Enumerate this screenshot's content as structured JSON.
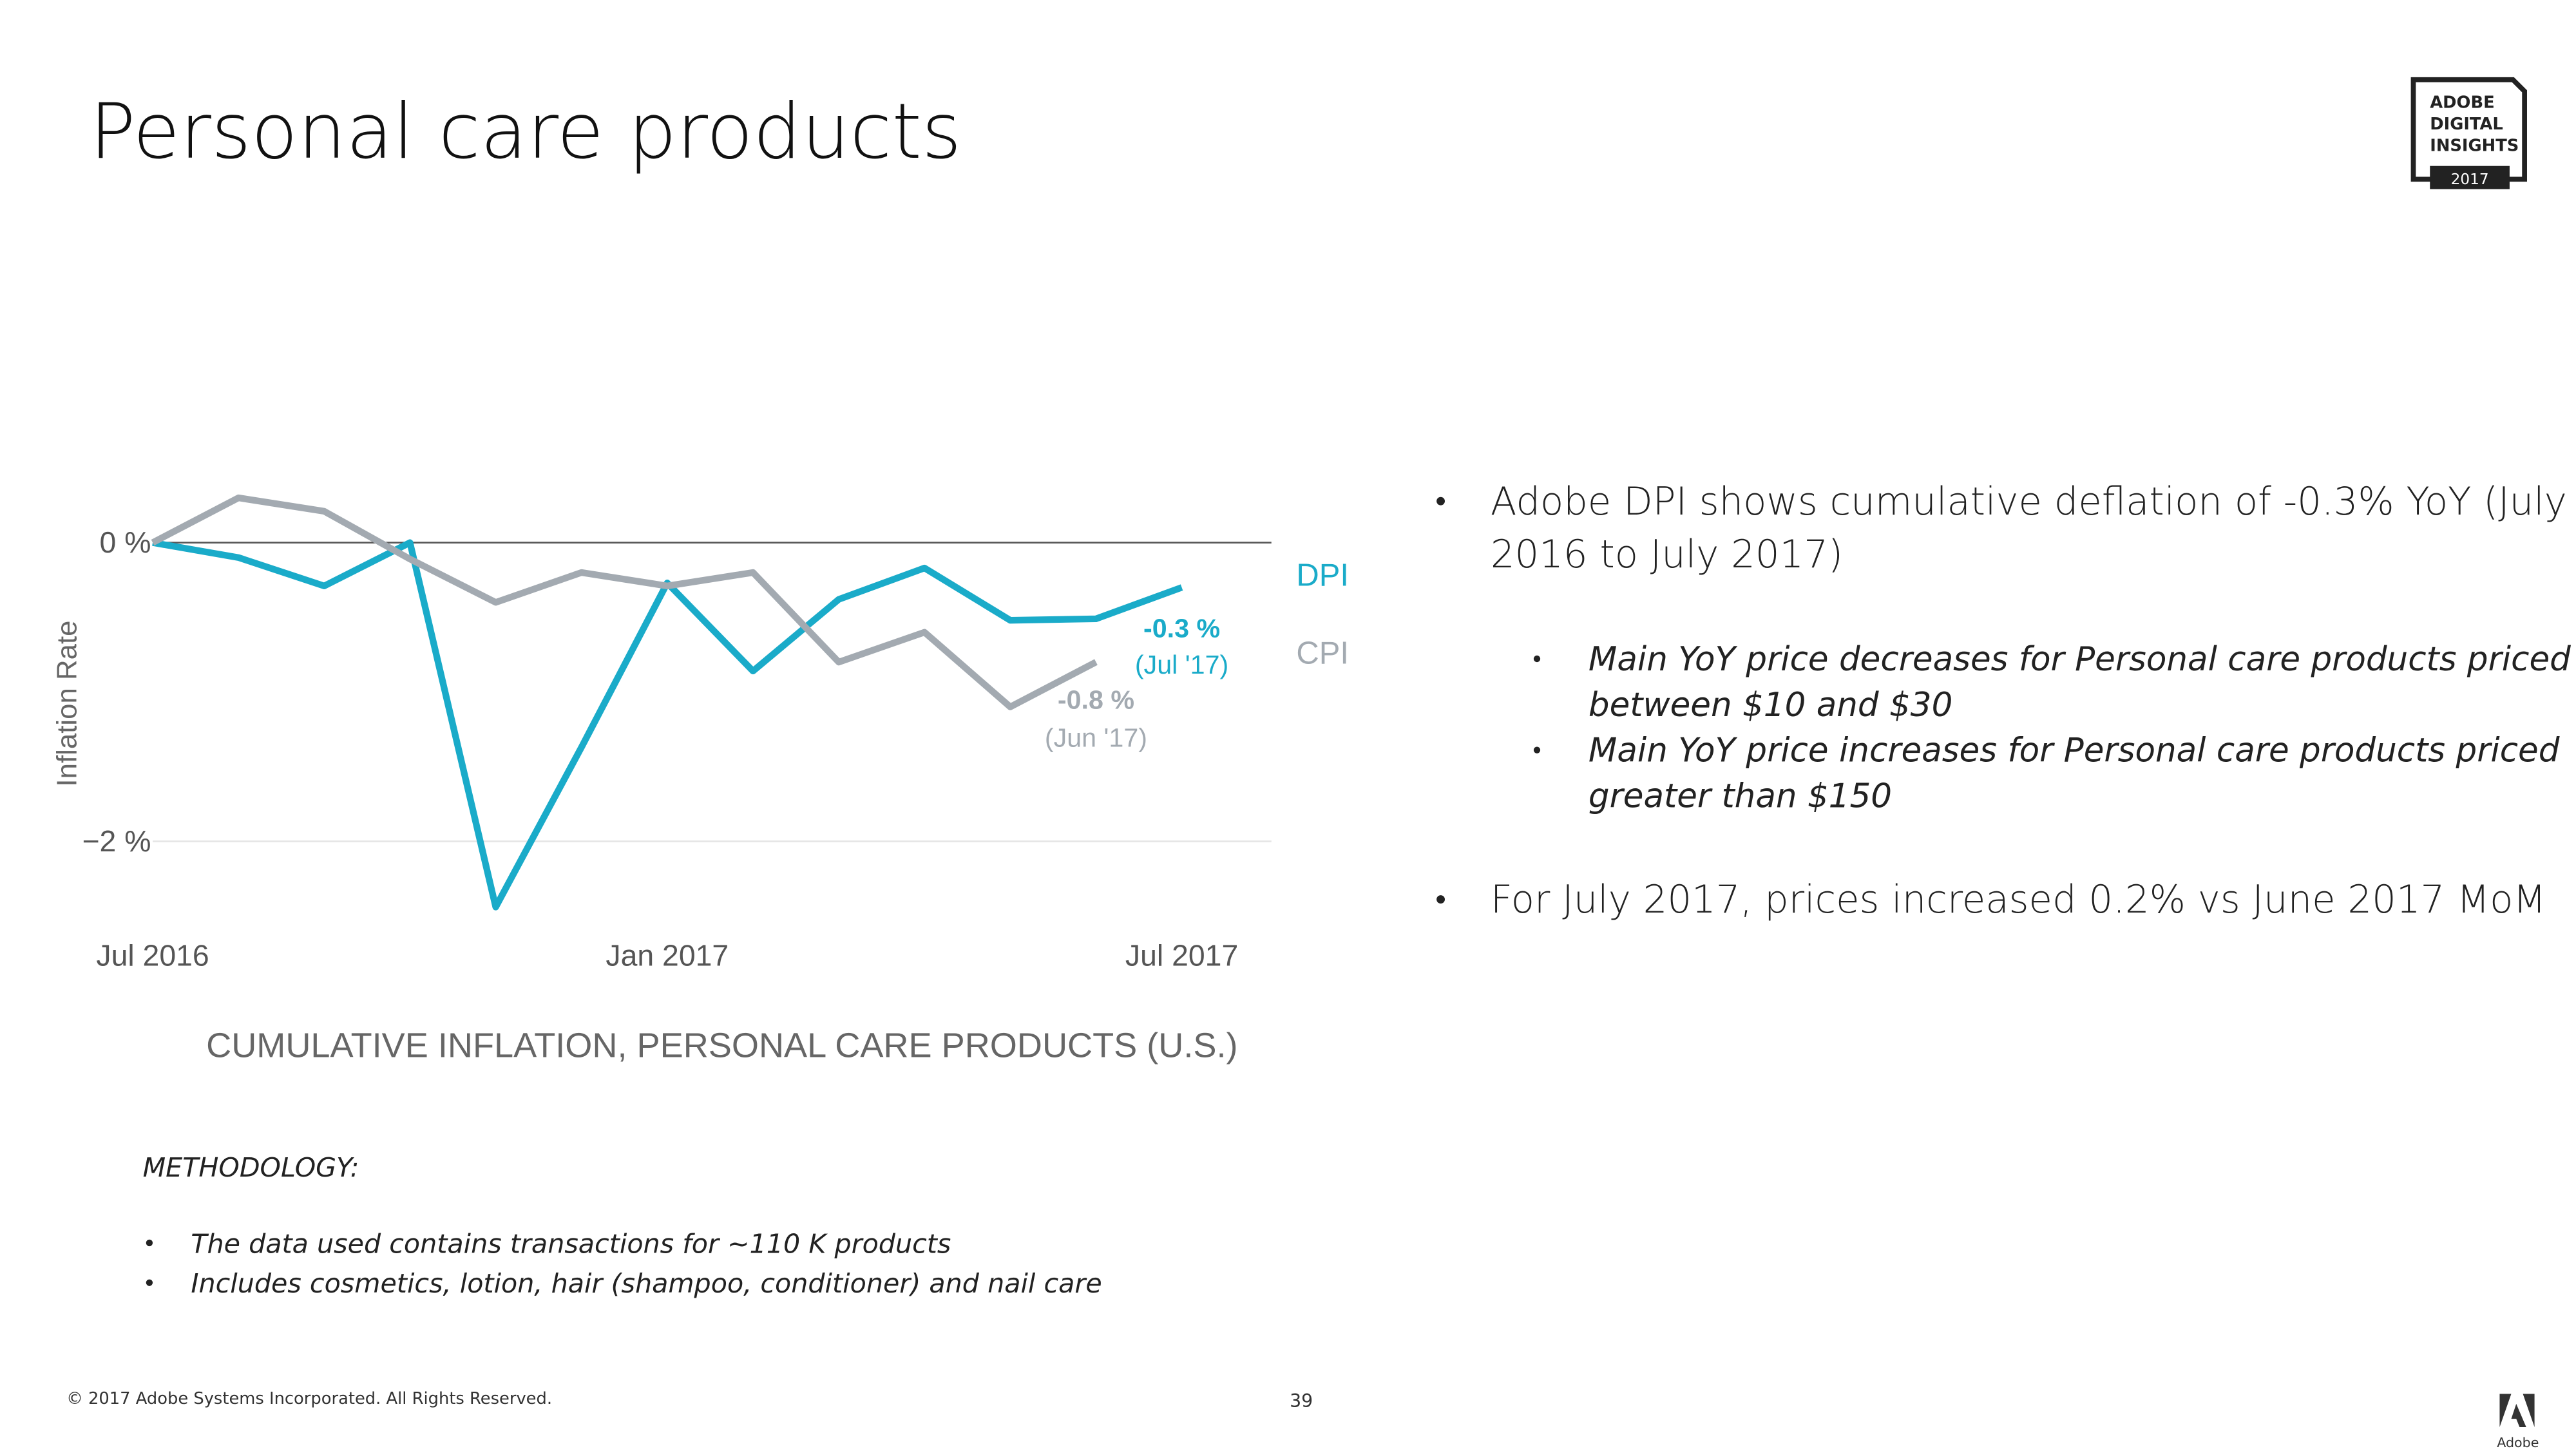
{
  "header": {
    "title": "Personal care products",
    "badge": [
      "ADOBE",
      "DIGITAL",
      "INSIGHTS",
      "2017"
    ]
  },
  "chart_data": {
    "type": "line",
    "title": "CUMULATIVE INFLATION, PERSONAL CARE PRODUCTS (U.S.)",
    "y_label": "Inflation Rate",
    "categories": [
      "Jul 2016",
      null,
      null,
      null,
      null,
      null,
      "Jan 2017",
      null,
      null,
      null,
      null,
      null,
      "Jul 2017"
    ],
    "series": [
      {
        "name": "DPI",
        "color": "#1aabc9",
        "values": [
          0,
          -0.1,
          -0.29,
          0,
          -2.44,
          -1.37,
          -0.27,
          -0.86,
          -0.38,
          -0.17,
          -0.52,
          -0.51,
          -0.3
        ],
        "annotation": [
          "-0.3 %",
          "(Jul '17)"
        ]
      },
      {
        "name": "CPI",
        "color": "#a3aab1",
        "values": [
          0,
          0.3,
          0.21,
          -0.11,
          -0.4,
          -0.2,
          -0.29,
          -0.2,
          -0.8,
          -0.6,
          -1.1,
          -0.8,
          null
        ],
        "annotation": [
          "-0.8 %",
          "(Jun '17)"
        ]
      }
    ],
    "ylim": [
      -2.5,
      0.4
    ],
    "yticks": [
      {
        "value": 0,
        "label": "0 %"
      },
      {
        "value": -2,
        "label": "−2 %"
      }
    ],
    "grid": true
  },
  "bullets": [
    {
      "lines": [
        "Adobe DPI shows cumulative deflation of -0.3% YoY (July",
        "2016 to July 2017)"
      ],
      "sub": [
        [
          "Main YoY price decreases for Personal care products priced",
          "between $10 and $30"
        ],
        [
          "Main YoY price increases for Personal care products priced",
          "greater than $150"
        ]
      ]
    },
    {
      "lines": [
        "For July 2017, prices increased 0.2% vs June 2017 MoM"
      ]
    }
  ],
  "methodology": {
    "heading": "METHODOLOGY:",
    "items": [
      "The data used contains transactions for ~110 K products",
      "Includes cosmetics, lotion, hair (shampoo, conditioner) and nail care"
    ]
  },
  "footer": {
    "copyright": "© 2017 Adobe Systems Incorporated.  All Rights Reserved.",
    "page": "39",
    "logo": "Adobe"
  }
}
